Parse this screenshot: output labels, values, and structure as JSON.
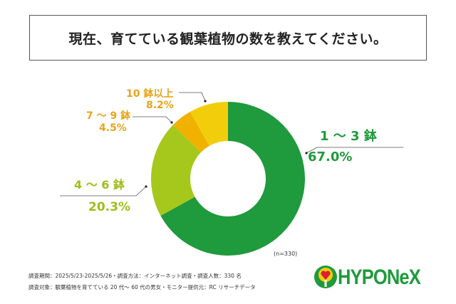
{
  "title": "現在、育てている観葉植物の数を教えてください。",
  "chart_data": {
    "type": "pie",
    "variant": "donut",
    "title": "現在、育てている観葉植物の数を教えてください。",
    "n_label": "(n=330)",
    "categories": [
      "1 ～ 3 鉢",
      "4 ～ 6 鉢",
      "7 ～ 9 鉢",
      "10 鉢以上"
    ],
    "values": [
      67.0,
      20.3,
      4.5,
      8.2
    ],
    "value_labels": [
      "67.0%",
      "20.3%",
      "4.5%",
      "8.2%"
    ],
    "colors": [
      "#1f9a3c",
      "#a6c81c",
      "#f0b100",
      "#f2cd0c"
    ],
    "label_colors": [
      "#1f9a3c",
      "#9dbf1a",
      "#e8a41c",
      "#e8a41c"
    ]
  },
  "notes": [
    "調査期間：2025/5/23-2025/5/26・調査方法：インターネット調査・調査人数：330 名",
    "調査対象：観葉植物を育てている 20 代～ 60 代の男女・モニター提供元：RC リサーチデータ"
  ],
  "logo": "HYPONeX"
}
